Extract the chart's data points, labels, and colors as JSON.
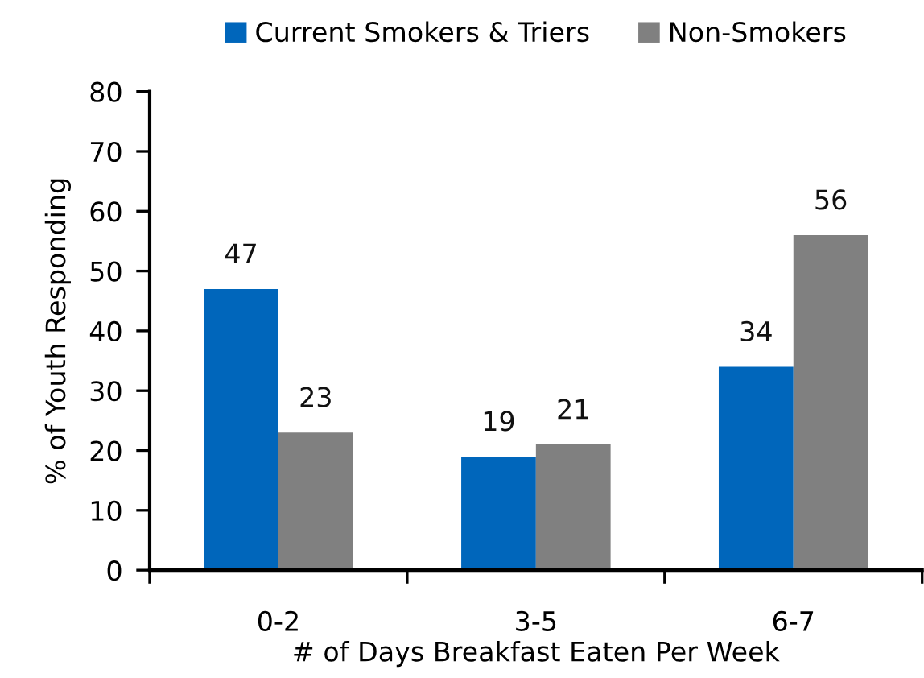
{
  "chart_data": {
    "type": "bar",
    "xlabel": "# of Days Breakfast Eaten Per Week",
    "ylabel": "% of Youth Responding",
    "categories": [
      "0-2",
      "3-5",
      "6-7"
    ],
    "series": [
      {
        "name": "Current Smokers & Triers",
        "color": "#0066bb",
        "values": [
          47,
          19,
          34
        ]
      },
      {
        "name": "Non-Smokers",
        "color": "#808080",
        "values": [
          23,
          21,
          56
        ]
      }
    ],
    "ylim": [
      0,
      80
    ],
    "yticks": [
      0,
      10,
      20,
      30,
      40,
      50,
      60,
      70,
      80
    ],
    "data_labels": true,
    "legend": "top",
    "grid": false
  }
}
